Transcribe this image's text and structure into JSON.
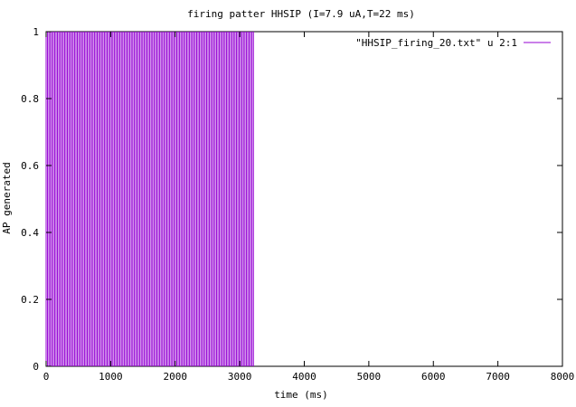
{
  "chart_data": {
    "type": "line",
    "title": "firing patter HHSIP (I=7.9 uA,T=22 ms)",
    "xlabel": "time (ms)",
    "ylabel": "AP generated",
    "xlim": [
      0,
      8000
    ],
    "ylim": [
      0,
      1
    ],
    "x_ticks": [
      0,
      1000,
      2000,
      3000,
      4000,
      5000,
      6000,
      7000,
      8000
    ],
    "y_ticks": [
      "0",
      "0.2",
      "0.4",
      "0.6",
      "0.8",
      "1"
    ],
    "grid": false,
    "legend_position": "top-right",
    "series": [
      {
        "name": "\"HHSIP_firing_20.txt\" u 2:1",
        "color": "#9400d3",
        "style": "impulses",
        "pattern": "periodic spikes to 1",
        "period_ms": 22,
        "first_x": 0,
        "last_x": 3212,
        "value": 1
      }
    ]
  }
}
